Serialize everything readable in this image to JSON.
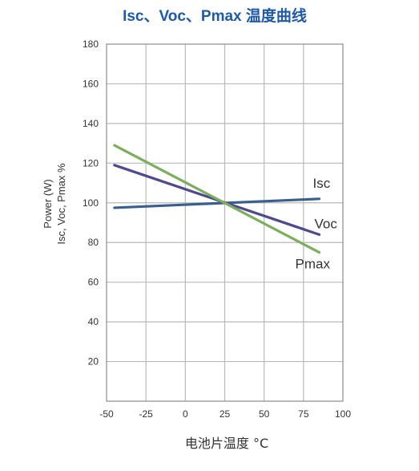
{
  "chart_data": {
    "type": "line",
    "title": "Isc、Voc、Pmax 温度曲线",
    "xlabel": "电池片温度 °C",
    "ylabel_lines": [
      "Power (W)",
      "Isc, Voc, Pmax %"
    ],
    "xlim": [
      -50,
      100
    ],
    "ylim": [
      0,
      180
    ],
    "x_ticks": [
      -50,
      -25,
      0,
      25,
      50,
      75,
      100
    ],
    "y_ticks": [
      20,
      40,
      60,
      80,
      100,
      120,
      140,
      160,
      180
    ],
    "grid": true,
    "series": [
      {
        "name": "Isc",
        "color": "#3a5f8f",
        "x": [
          -45,
          85
        ],
        "y": [
          97.5,
          102
        ]
      },
      {
        "name": "Voc",
        "color": "#4e4a8c",
        "x": [
          -45,
          85
        ],
        "y": [
          119,
          84
        ]
      },
      {
        "name": "Pmax",
        "color": "#7dae5f",
        "x": [
          -45,
          85
        ],
        "y": [
          129,
          75
        ]
      }
    ]
  }
}
